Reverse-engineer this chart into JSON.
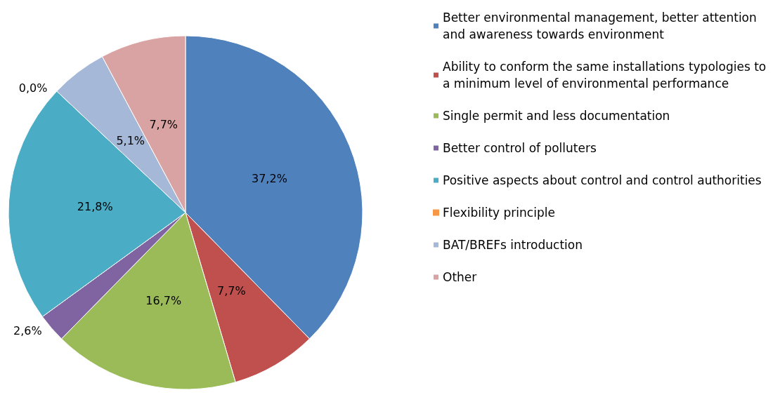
{
  "chart_data": {
    "type": "pie",
    "categories": [
      "Better environmental management, better attention and awareness towards environment",
      "Ability to conform the same installations typologies to a minimum level of environmental performance",
      "Single permit and less documentation",
      "Better control of polluters",
      "Positive aspects about control and control authorities",
      "Flexibility principle",
      "BAT/BREFs introduction",
      "Other"
    ],
    "values": [
      37.2,
      7.7,
      16.7,
      2.6,
      21.8,
      0.0,
      5.1,
      7.7
    ],
    "value_labels": [
      "37,2%",
      "7,7%",
      "16,7%",
      "2,6%",
      "21,8%",
      "0,0%",
      "5,1%",
      "7,7%"
    ],
    "colors": [
      "#4f81bd",
      "#c0504d",
      "#9bbb59",
      "#8064a2",
      "#4bacc6",
      "#f79646",
      "#a5b8d8",
      "#d9a3a3"
    ],
    "legend": "right"
  }
}
